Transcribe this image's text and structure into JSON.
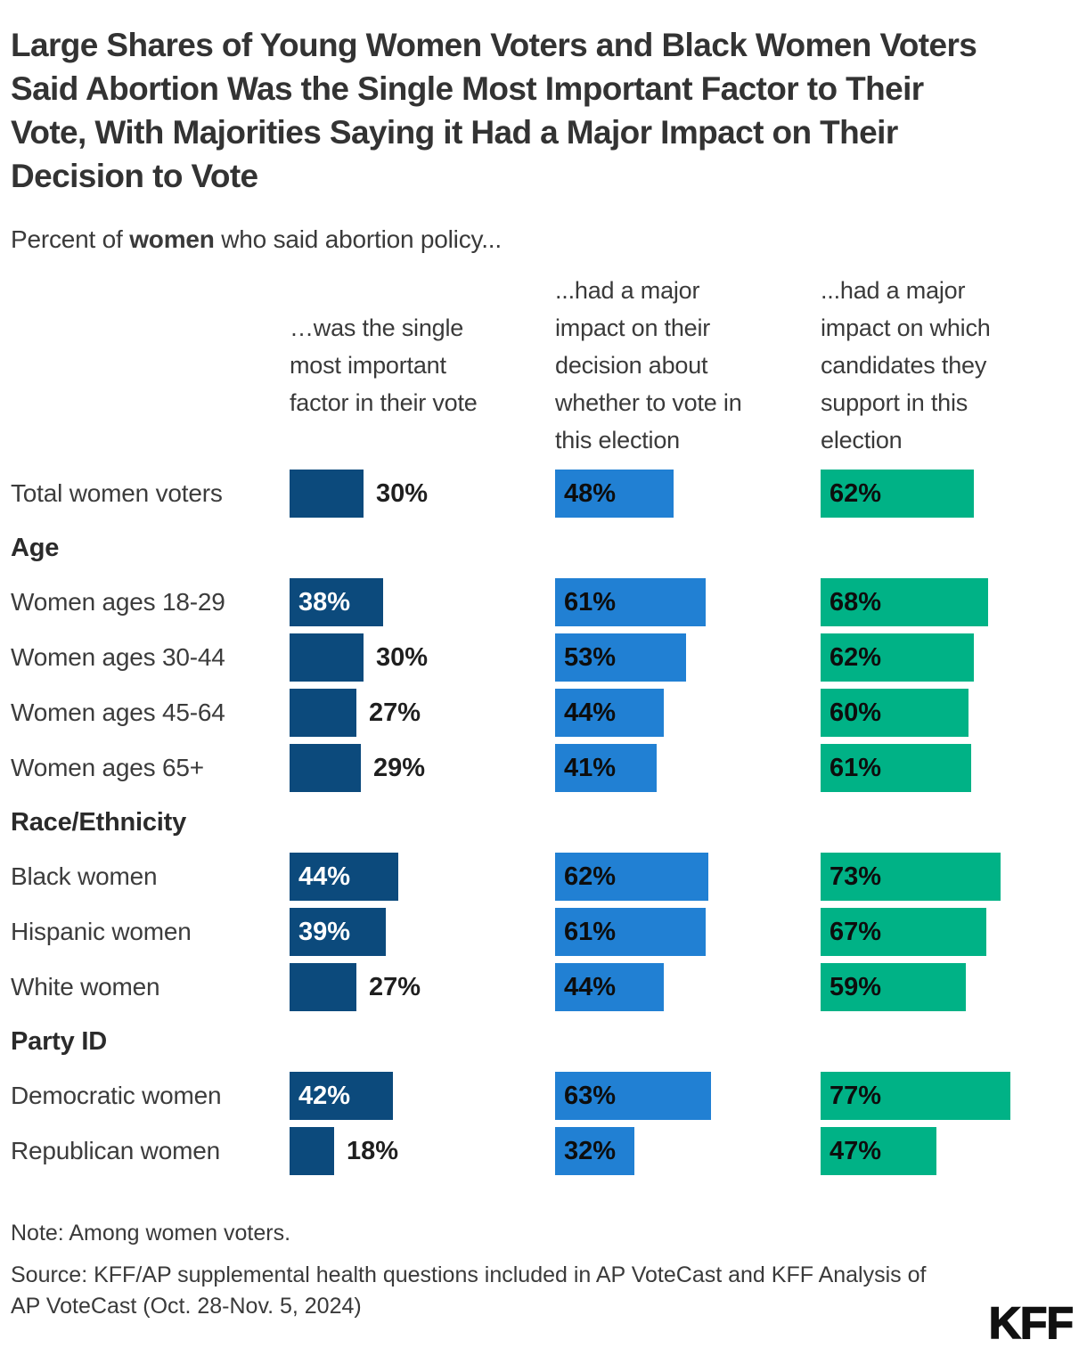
{
  "title": "Large Shares of Young Women Voters and Black Women Voters\nSaid Abortion Was the Single Most Important Factor to Their\nVote, With Majorities Saying it Had a Major Impact on Their\nDecision to Vote",
  "subtitle": {
    "prefix": "Percent of ",
    "emphasis": "women",
    "suffix": " who said abortion policy..."
  },
  "note": "Note: Among women voters.",
  "source": "Source: KFF/AP supplemental health questions included in AP VoteCast and KFF Analysis of\nAP VoteCast (Oct. 28-Nov. 5, 2024)",
  "logo": "KFF",
  "colors": {
    "navy": "#0C4A7C",
    "blue": "#2180D3",
    "teal": "#00B286",
    "text_dark": "#333333",
    "text_gray": "#3a3a3a"
  },
  "chart_data": {
    "type": "bar",
    "orientation": "horizontal",
    "unit": "%",
    "xlim": [
      0,
      100
    ],
    "grid": false,
    "value_labels": "on_bars",
    "inside_label_threshold_col1": 35,
    "columns": [
      {
        "key": "single-most-important-factor",
        "header": "…was the single\nmost important\nfactor in their vote",
        "color": "#0C4A7C"
      },
      {
        "key": "major-impact-decision-to-vote",
        "header": "...had a major\nimpact on their\ndecision about\nwhether to vote in\nthis election",
        "color": "#2180D3"
      },
      {
        "key": "major-impact-candidate-support",
        "header": "...had a major\nimpact on which\ncandidates they\nsupport in this\nelection",
        "color": "#00B286"
      }
    ],
    "rows": [
      {
        "type": "data",
        "label": "Total women voters",
        "values": [
          30,
          48,
          62
        ]
      },
      {
        "type": "section",
        "label": "Age"
      },
      {
        "type": "data",
        "label": "Women ages 18-29",
        "values": [
          38,
          61,
          68
        ]
      },
      {
        "type": "data",
        "label": "Women ages 30-44",
        "values": [
          30,
          53,
          62
        ]
      },
      {
        "type": "data",
        "label": "Women ages 45-64",
        "values": [
          27,
          44,
          60
        ]
      },
      {
        "type": "data",
        "label": "Women ages 65+",
        "values": [
          29,
          41,
          61
        ]
      },
      {
        "type": "section",
        "label": "Race/Ethnicity"
      },
      {
        "type": "data",
        "label": "Black women",
        "values": [
          44,
          62,
          73
        ]
      },
      {
        "type": "data",
        "label": "Hispanic women",
        "values": [
          39,
          61,
          67
        ]
      },
      {
        "type": "data",
        "label": "White women",
        "values": [
          27,
          44,
          59
        ]
      },
      {
        "type": "section",
        "label": "Party ID"
      },
      {
        "type": "data",
        "label": "Democratic women",
        "values": [
          42,
          63,
          77
        ]
      },
      {
        "type": "data",
        "label": "Republican women",
        "values": [
          18,
          32,
          47
        ]
      }
    ]
  }
}
